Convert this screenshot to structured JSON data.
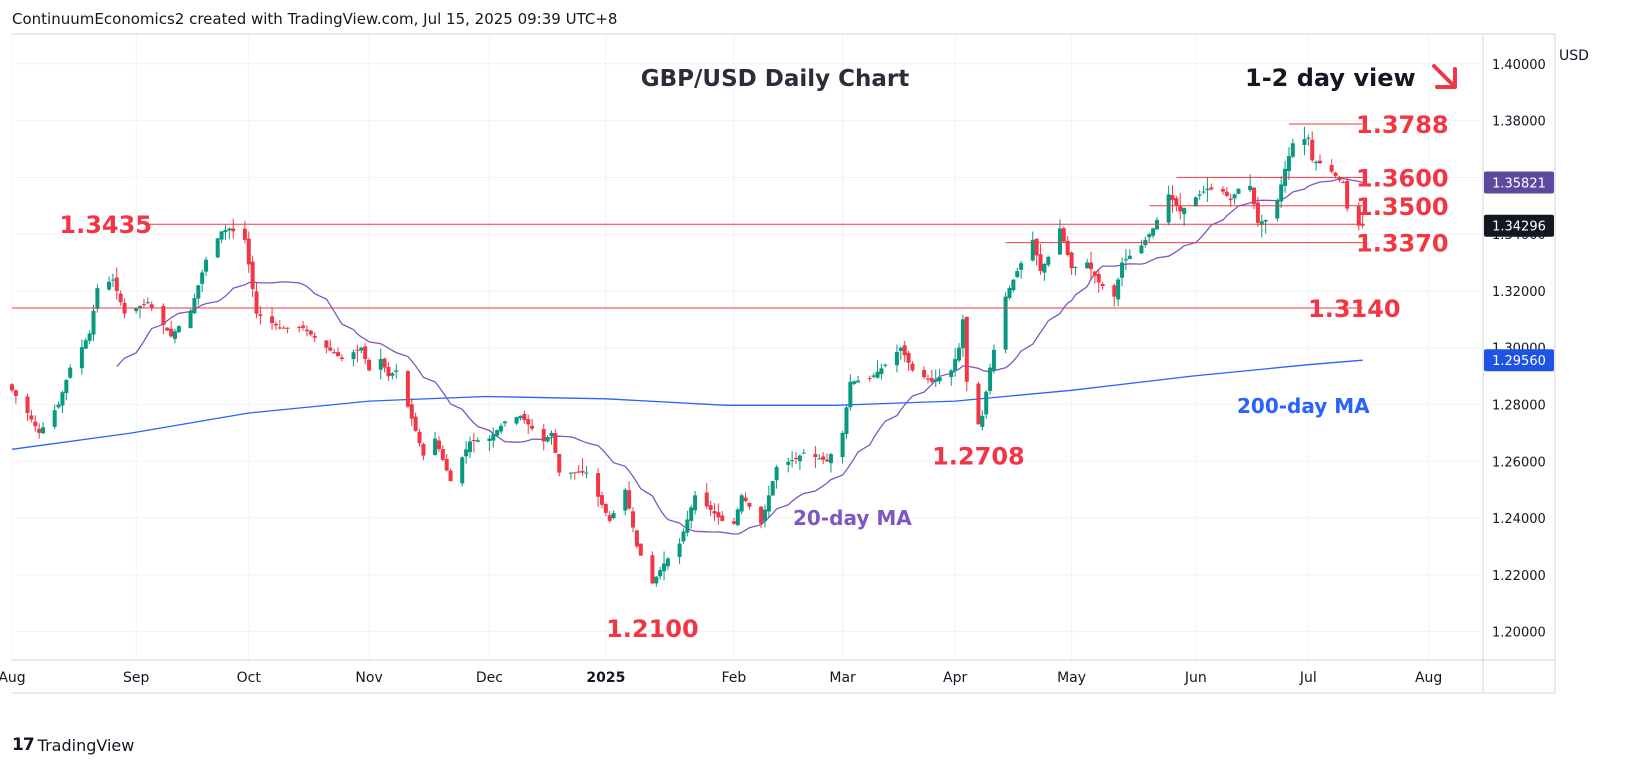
{
  "header": {
    "attribution": "ContinuumEconomics2 created with TradingView.com, Jul 15, 2025 09:39 UTC+8"
  },
  "footer": {
    "brand": "TradingView",
    "logo_text": "17"
  },
  "colors": {
    "bull": "#089981",
    "bear": "#f23645",
    "ma20": "#7e57c2",
    "ma200": "#2962ff",
    "level": "#f23645",
    "badge_price": "#131722",
    "badge_ma20": "#5b4a9e",
    "badge_ma200": "#1e53e5"
  },
  "chart_data": {
    "type": "candlestick",
    "title": "GBP/USD Daily Chart",
    "view_label": "1-2 day view",
    "view_direction": "down",
    "currency": "USD",
    "ylim": [
      1.19,
      1.4105
    ],
    "y_ticks": [
      1.2,
      1.22,
      1.24,
      1.26,
      1.28,
      1.3,
      1.32,
      1.34,
      1.36,
      1.38,
      1.4
    ],
    "y_tick_labels": [
      "1.20000",
      "1.22000",
      "1.24000",
      "1.26000",
      "1.28000",
      "1.30000",
      "1.32000",
      "1.34000",
      "1.36000",
      "1.38000",
      "1.40000"
    ],
    "x_ticks": [
      {
        "label": "Aug",
        "date": "2024-08-01"
      },
      {
        "label": "Sep",
        "date": "2024-09-02"
      },
      {
        "label": "Oct",
        "date": "2024-10-01"
      },
      {
        "label": "Nov",
        "date": "2024-11-01"
      },
      {
        "label": "Dec",
        "date": "2024-12-02"
      },
      {
        "label": "2025",
        "date": "2025-01-01",
        "bold": true
      },
      {
        "label": "Feb",
        "date": "2025-02-03"
      },
      {
        "label": "Mar",
        "date": "2025-03-03"
      },
      {
        "label": "Apr",
        "date": "2025-04-01"
      },
      {
        "label": "May",
        "date": "2025-05-01"
      },
      {
        "label": "Jun",
        "date": "2025-06-02"
      },
      {
        "label": "Jul",
        "date": "2025-07-01"
      },
      {
        "label": "Aug",
        "date": "2025-08-01"
      }
    ],
    "keypoints": [
      {
        "date": "2024-08-01",
        "close": 1.285
      },
      {
        "date": "2024-08-05",
        "close": 1.277
      },
      {
        "date": "2024-08-08",
        "close": 1.27
      },
      {
        "date": "2024-08-13",
        "close": 1.28
      },
      {
        "date": "2024-08-16",
        "close": 1.293
      },
      {
        "date": "2024-08-21",
        "close": 1.305
      },
      {
        "date": "2024-08-23",
        "close": 1.321
      },
      {
        "date": "2024-08-27",
        "close": 1.324
      },
      {
        "date": "2024-08-30",
        "close": 1.312
      },
      {
        "date": "2024-09-05",
        "close": 1.316
      },
      {
        "date": "2024-09-11",
        "close": 1.304
      },
      {
        "date": "2024-09-16",
        "close": 1.313
      },
      {
        "date": "2024-09-20",
        "close": 1.331
      },
      {
        "date": "2024-09-24",
        "close": 1.341
      },
      {
        "date": "2024-09-26",
        "close": 1.342
      },
      {
        "date": "2024-09-30",
        "close": 1.338
      },
      {
        "date": "2024-10-03",
        "close": 1.312
      },
      {
        "date": "2024-10-09",
        "close": 1.307
      },
      {
        "date": "2024-10-15",
        "close": 1.307
      },
      {
        "date": "2024-10-21",
        "close": 1.3
      },
      {
        "date": "2024-10-25",
        "close": 1.296
      },
      {
        "date": "2024-10-30",
        "close": 1.3
      },
      {
        "date": "2024-11-01",
        "close": 1.292
      },
      {
        "date": "2024-11-04",
        "close": 1.296
      },
      {
        "date": "2024-11-06",
        "close": 1.29
      },
      {
        "date": "2024-11-08",
        "close": 1.292
      },
      {
        "date": "2024-11-12",
        "close": 1.275
      },
      {
        "date": "2024-11-15",
        "close": 1.262
      },
      {
        "date": "2024-11-18",
        "close": 1.268
      },
      {
        "date": "2024-11-22",
        "close": 1.253
      },
      {
        "date": "2024-11-27",
        "close": 1.267
      },
      {
        "date": "2024-12-02",
        "close": 1.268
      },
      {
        "date": "2024-12-06",
        "close": 1.274
      },
      {
        "date": "2024-12-10",
        "close": 1.276
      },
      {
        "date": "2024-12-16",
        "close": 1.267
      },
      {
        "date": "2024-12-18",
        "close": 1.27
      },
      {
        "date": "2024-12-20",
        "close": 1.256
      },
      {
        "date": "2024-12-27",
        "close": 1.256
      },
      {
        "date": "2025-01-02",
        "close": 1.239
      },
      {
        "date": "2025-01-06",
        "close": 1.25
      },
      {
        "date": "2025-01-09",
        "close": 1.23
      },
      {
        "date": "2025-01-13",
        "close": 1.217
      },
      {
        "date": "2025-01-16",
        "close": 1.224
      },
      {
        "date": "2025-01-20",
        "close": 1.231
      },
      {
        "date": "2025-01-24",
        "close": 1.248
      },
      {
        "date": "2025-01-31",
        "close": 1.239
      },
      {
        "date": "2025-02-03",
        "close": 1.238
      },
      {
        "date": "2025-02-05",
        "close": 1.248
      },
      {
        "date": "2025-02-10",
        "close": 1.238
      },
      {
        "date": "2025-02-14",
        "close": 1.258
      },
      {
        "date": "2025-02-19",
        "close": 1.261
      },
      {
        "date": "2025-02-21",
        "close": 1.263
      },
      {
        "date": "2025-02-27",
        "close": 1.26
      },
      {
        "date": "2025-03-03",
        "close": 1.27
      },
      {
        "date": "2025-03-05",
        "close": 1.288
      },
      {
        "date": "2025-03-10",
        "close": 1.289
      },
      {
        "date": "2025-03-14",
        "close": 1.294
      },
      {
        "date": "2025-03-18",
        "close": 1.3
      },
      {
        "date": "2025-03-21",
        "close": 1.292
      },
      {
        "date": "2025-03-26",
        "close": 1.288
      },
      {
        "date": "2025-03-31",
        "close": 1.292
      },
      {
        "date": "2025-04-02",
        "close": 1.3
      },
      {
        "date": "2025-04-03",
        "close": 1.31
      },
      {
        "date": "2025-04-04",
        "close": 1.288
      },
      {
        "date": "2025-04-07",
        "close": 1.273
      },
      {
        "date": "2025-04-08",
        "close": 1.276
      },
      {
        "date": "2025-04-10",
        "close": 1.293
      },
      {
        "date": "2025-04-14",
        "close": 1.318
      },
      {
        "date": "2025-04-17",
        "close": 1.327
      },
      {
        "date": "2025-04-21",
        "close": 1.338
      },
      {
        "date": "2025-04-23",
        "close": 1.327
      },
      {
        "date": "2025-04-25",
        "close": 1.332
      },
      {
        "date": "2025-04-28",
        "close": 1.342
      },
      {
        "date": "2025-05-01",
        "close": 1.328
      },
      {
        "date": "2025-05-05",
        "close": 1.33
      },
      {
        "date": "2025-05-08",
        "close": 1.323
      },
      {
        "date": "2025-05-12",
        "close": 1.318
      },
      {
        "date": "2025-05-14",
        "close": 1.33
      },
      {
        "date": "2025-05-19",
        "close": 1.336
      },
      {
        "date": "2025-05-22",
        "close": 1.342
      },
      {
        "date": "2025-05-26",
        "close": 1.354
      },
      {
        "date": "2025-05-29",
        "close": 1.348
      },
      {
        "date": "2025-06-02",
        "close": 1.353
      },
      {
        "date": "2025-06-05",
        "close": 1.356
      },
      {
        "date": "2025-06-09",
        "close": 1.355
      },
      {
        "date": "2025-06-11",
        "close": 1.352
      },
      {
        "date": "2025-06-13",
        "close": 1.356
      },
      {
        "date": "2025-06-16",
        "close": 1.357
      },
      {
        "date": "2025-06-18",
        "close": 1.344
      },
      {
        "date": "2025-06-20",
        "close": 1.345
      },
      {
        "date": "2025-06-23",
        "close": 1.352
      },
      {
        "date": "2025-06-25",
        "close": 1.363
      },
      {
        "date": "2025-06-27",
        "close": 1.372
      },
      {
        "date": "2025-07-01",
        "close": 1.374
      },
      {
        "date": "2025-07-02",
        "close": 1.366
      },
      {
        "date": "2025-07-04",
        "close": 1.365
      },
      {
        "date": "2025-07-07",
        "close": 1.362
      },
      {
        "date": "2025-07-09",
        "close": 1.359
      },
      {
        "date": "2025-07-10",
        "close": 1.358
      },
      {
        "date": "2025-07-11",
        "close": 1.349
      },
      {
        "date": "2025-07-14",
        "close": 1.343
      },
      {
        "date": "2025-07-15",
        "close": 1.343
      }
    ],
    "ma200": [
      {
        "date": "2024-08-01",
        "value": 1.2642
      },
      {
        "date": "2024-09-01",
        "value": 1.27
      },
      {
        "date": "2024-10-01",
        "value": 1.277
      },
      {
        "date": "2024-11-01",
        "value": 1.2812
      },
      {
        "date": "2024-12-01",
        "value": 1.2828
      },
      {
        "date": "2025-01-01",
        "value": 1.282
      },
      {
        "date": "2025-02-01",
        "value": 1.2797
      },
      {
        "date": "2025-03-01",
        "value": 1.2797
      },
      {
        "date": "2025-04-01",
        "value": 1.2812
      },
      {
        "date": "2025-05-01",
        "value": 1.285
      },
      {
        "date": "2025-06-01",
        "value": 1.29
      },
      {
        "date": "2025-07-01",
        "value": 1.294
      },
      {
        "date": "2025-07-15",
        "value": 1.2956
      }
    ],
    "levels": [
      {
        "label": "1.3788",
        "value": 1.3788,
        "from": "2025-06-26",
        "to": "2025-07-15"
      },
      {
        "label": "1.3600",
        "value": 1.36,
        "from": "2025-05-28",
        "to": "2025-07-15"
      },
      {
        "label": "1.3500",
        "value": 1.35,
        "from": "2025-05-21",
        "to": "2025-07-15"
      },
      {
        "label": "1.3435",
        "value": 1.3435,
        "from": "2024-09-04",
        "to": "2025-07-15"
      },
      {
        "label": "1.3370",
        "value": 1.337,
        "from": "2025-04-14",
        "to": "2025-07-15"
      },
      {
        "label": "1.3140",
        "value": 1.314,
        "from": "2024-08-01",
        "to": "2025-07-15"
      }
    ],
    "annotations": [
      {
        "label": "1.2100",
        "date": "2025-01-13",
        "value": 1.21
      },
      {
        "label": "1.2708",
        "date": "2025-04-07",
        "value": 1.2708
      },
      {
        "label": "20-day MA",
        "series": "ma20"
      },
      {
        "label": "200-day MA",
        "series": "ma200"
      }
    ],
    "price_badges": [
      {
        "label": "1.35821",
        "value": 1.35821,
        "series": "ma20"
      },
      {
        "label": "1.34296",
        "value": 1.34296,
        "series": "price"
      },
      {
        "label": "1.29560",
        "value": 1.2956,
        "series": "ma200"
      }
    ]
  }
}
